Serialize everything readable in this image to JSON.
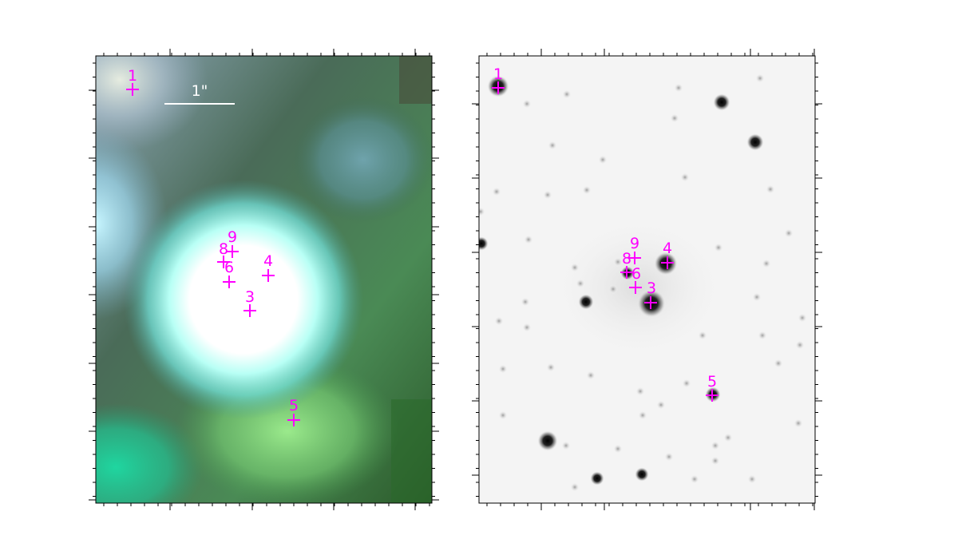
{
  "panels": {
    "left": {
      "scale_label": "1\"",
      "markers": [
        {
          "id": "1",
          "label": "1"
        },
        {
          "id": "9",
          "label": "9"
        },
        {
          "id": "8",
          "label": "8"
        },
        {
          "id": "6",
          "label": "6"
        },
        {
          "id": "4",
          "label": "4"
        },
        {
          "id": "3",
          "label": "3"
        },
        {
          "id": "5",
          "label": "5"
        }
      ]
    },
    "right": {
      "markers": [
        {
          "id": "1",
          "label": "1"
        },
        {
          "id": "9",
          "label": "9"
        },
        {
          "id": "8",
          "label": "8"
        },
        {
          "id": "6",
          "label": "6"
        },
        {
          "id": "4",
          "label": "4"
        },
        {
          "id": "3",
          "label": "3"
        },
        {
          "id": "5",
          "label": "5"
        }
      ]
    }
  },
  "colors": {
    "marker": "#ff00ff",
    "scale_bar": "#ffffff",
    "frame": "#000000"
  }
}
